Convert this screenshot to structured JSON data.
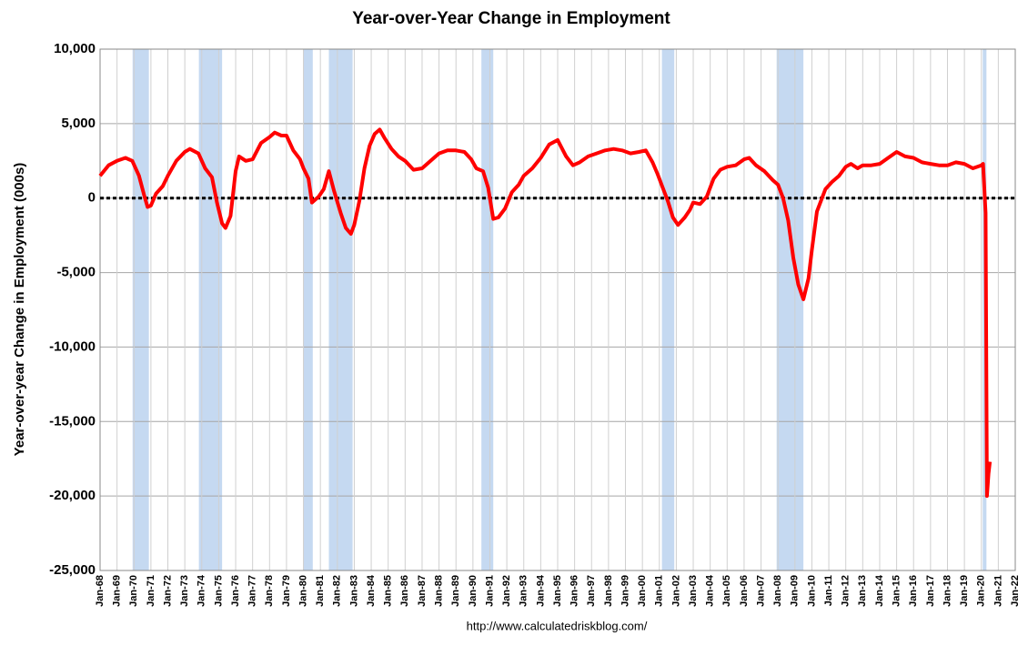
{
  "chart_data": {
    "type": "line",
    "title": "Year-over-Year Change in Employment",
    "y_label": "Year-over-year Change in Employment (000s)",
    "source": "http://www.calculatedriskblog.com/",
    "grid": true,
    "ylim": [
      -25000,
      10000
    ],
    "yticks": [
      {
        "value": -25000,
        "label": "-25,000"
      },
      {
        "value": -20000,
        "label": "-20,000"
      },
      {
        "value": -15000,
        "label": "-15,000"
      },
      {
        "value": -10000,
        "label": "-10,000"
      },
      {
        "value": -5000,
        "label": "-5,000"
      },
      0,
      {
        "value": 5000,
        "label": "5,000"
      },
      {
        "value": 10000,
        "label": "10,000"
      }
    ],
    "xlim": [
      1968,
      2022
    ],
    "xticks": [
      {
        "value": 1968,
        "label": "Jan-68"
      },
      {
        "value": 1969,
        "label": "Jan-69"
      },
      {
        "value": 1970,
        "label": "Jan-70"
      },
      {
        "value": 1971,
        "label": "Jan-71"
      },
      {
        "value": 1972,
        "label": "Jan-72"
      },
      {
        "value": 1973,
        "label": "Jan-73"
      },
      {
        "value": 1974,
        "label": "Jan-74"
      },
      {
        "value": 1975,
        "label": "Jan-75"
      },
      {
        "value": 1976,
        "label": "Jan-76"
      },
      {
        "value": 1977,
        "label": "Jan-77"
      },
      {
        "value": 1978,
        "label": "Jan-78"
      },
      {
        "value": 1979,
        "label": "Jan-79"
      },
      {
        "value": 1980,
        "label": "Jan-80"
      },
      {
        "value": 1981,
        "label": "Jan-81"
      },
      {
        "value": 1982,
        "label": "Jan-82"
      },
      {
        "value": 1983,
        "label": "Jan-83"
      },
      {
        "value": 1984,
        "label": "Jan-84"
      },
      {
        "value": 1985,
        "label": "Jan-85"
      },
      {
        "value": 1986,
        "label": "Jan-86"
      },
      {
        "value": 1987,
        "label": "Jan-87"
      },
      {
        "value": 1988,
        "label": "Jan-88"
      },
      {
        "value": 1989,
        "label": "Jan-89"
      },
      {
        "value": 1990,
        "label": "Jan-90"
      },
      {
        "value": 1991,
        "label": "Jan-91"
      },
      {
        "value": 1992,
        "label": "Jan-92"
      },
      {
        "value": 1993,
        "label": "Jan-93"
      },
      {
        "value": 1994,
        "label": "Jan-94"
      },
      {
        "value": 1995,
        "label": "Jan-95"
      },
      {
        "value": 1996,
        "label": "Jan-96"
      },
      {
        "value": 1997,
        "label": "Jan-97"
      },
      {
        "value": 1998,
        "label": "Jan-98"
      },
      {
        "value": 1999,
        "label": "Jan-99"
      },
      {
        "value": 2000,
        "label": "Jan-00"
      },
      {
        "value": 2001,
        "label": "Jan-01"
      },
      {
        "value": 2002,
        "label": "Jan-02"
      },
      {
        "value": 2003,
        "label": "Jan-03"
      },
      {
        "value": 2004,
        "label": "Jan-04"
      },
      {
        "value": 2005,
        "label": "Jan-05"
      },
      {
        "value": 2006,
        "label": "Jan-06"
      },
      {
        "value": 2007,
        "label": "Jan-07"
      },
      {
        "value": 2008,
        "label": "Jan-08"
      },
      {
        "value": 2009,
        "label": "Jan-09"
      },
      {
        "value": 2010,
        "label": "Jan-10"
      },
      {
        "value": 2011,
        "label": "Jan-11"
      },
      {
        "value": 2012,
        "label": "Jan-12"
      },
      {
        "value": 2013,
        "label": "Jan-13"
      },
      {
        "value": 2014,
        "label": "Jan-14"
      },
      {
        "value": 2015,
        "label": "Jan-15"
      },
      {
        "value": 2016,
        "label": "Jan-16"
      },
      {
        "value": 2017,
        "label": "Jan-17"
      },
      {
        "value": 2018,
        "label": "Jan-18"
      },
      {
        "value": 2019,
        "label": "Jan-19"
      },
      {
        "value": 2020,
        "label": "Jan-20"
      },
      {
        "value": 2021,
        "label": "Jan-21"
      },
      {
        "value": 2022,
        "label": "Jan-22"
      }
    ],
    "recessions": [
      [
        1969.92,
        1970.88
      ],
      [
        1973.83,
        1975.2
      ],
      [
        1980.0,
        1980.55
      ],
      [
        1981.5,
        1982.9
      ],
      [
        1990.5,
        1991.2
      ],
      [
        2001.15,
        2001.88
      ],
      [
        2007.92,
        2009.5
      ],
      [
        2020.08,
        2020.3
      ]
    ],
    "recession_color": "#c5d9f1",
    "x": [
      1968.0,
      1968.5,
      1969.0,
      1969.5,
      1969.9,
      1970.3,
      1970.6,
      1970.8,
      1971.0,
      1971.3,
      1971.7,
      1972.0,
      1972.5,
      1973.0,
      1973.3,
      1973.8,
      1974.2,
      1974.6,
      1974.9,
      1975.2,
      1975.4,
      1975.7,
      1976.0,
      1976.2,
      1976.6,
      1977.0,
      1977.5,
      1978.0,
      1978.3,
      1978.7,
      1979.0,
      1979.4,
      1979.8,
      1980.0,
      1980.3,
      1980.5,
      1980.9,
      1981.2,
      1981.5,
      1981.8,
      1982.2,
      1982.5,
      1982.8,
      1983.0,
      1983.3,
      1983.6,
      1983.9,
      1984.2,
      1984.5,
      1984.8,
      1985.2,
      1985.6,
      1986.0,
      1986.5,
      1987.0,
      1987.5,
      1988.0,
      1988.5,
      1989.0,
      1989.5,
      1989.9,
      1990.2,
      1990.6,
      1990.9,
      1991.2,
      1991.5,
      1991.9,
      1992.3,
      1992.7,
      1993.0,
      1993.5,
      1994.0,
      1994.5,
      1995.0,
      1995.5,
      1995.9,
      1996.3,
      1996.8,
      1997.3,
      1997.8,
      1998.3,
      1998.8,
      1999.3,
      1999.8,
      2000.2,
      2000.6,
      2000.9,
      2001.2,
      2001.5,
      2001.8,
      2002.1,
      2002.5,
      2002.8,
      2003.0,
      2003.4,
      2003.8,
      2004.2,
      2004.6,
      2005.0,
      2005.5,
      2006.0,
      2006.3,
      2006.7,
      2007.2,
      2007.7,
      2008.0,
      2008.3,
      2008.6,
      2008.9,
      2009.2,
      2009.5,
      2009.8,
      2010.0,
      2010.3,
      2010.8,
      2011.2,
      2011.6,
      2012.0,
      2012.3,
      2012.7,
      2013.0,
      2013.5,
      2014.0,
      2014.5,
      2015.0,
      2015.5,
      2016.0,
      2016.5,
      2017.0,
      2017.5,
      2018.0,
      2018.5,
      2019.0,
      2019.5,
      2020.0,
      2020.1,
      2020.25,
      2020.33,
      2020.42,
      2020.5
    ],
    "series": [
      {
        "name": "Year-over-Year Change in Employment",
        "color": "#ff0000",
        "values": [
          1500,
          2200,
          2500,
          2700,
          2500,
          1500,
          200,
          -600,
          -500,
          300,
          800,
          1500,
          2500,
          3100,
          3300,
          3000,
          2000,
          1400,
          -300,
          -1700,
          -2000,
          -1200,
          1800,
          2800,
          2500,
          2600,
          3700,
          4100,
          4400,
          4200,
          4200,
          3200,
          2600,
          2000,
          1300,
          -300,
          100,
          600,
          1800,
          500,
          -1000,
          -2000,
          -2400,
          -1800,
          -200,
          2000,
          3500,
          4300,
          4600,
          4000,
          3300,
          2800,
          2500,
          1900,
          2000,
          2500,
          3000,
          3200,
          3200,
          3100,
          2600,
          2000,
          1800,
          700,
          -1400,
          -1300,
          -700,
          400,
          900,
          1500,
          2000,
          2700,
          3600,
          3900,
          2800,
          2200,
          2400,
          2800,
          3000,
          3200,
          3300,
          3200,
          3000,
          3100,
          3200,
          2400,
          1600,
          700,
          -200,
          -1300,
          -1800,
          -1300,
          -800,
          -300,
          -400,
          100,
          1300,
          1900,
          2100,
          2200,
          2600,
          2700,
          2200,
          1800,
          1200,
          900,
          0,
          -1500,
          -4000,
          -5800,
          -6800,
          -5400,
          -3500,
          -900,
          600,
          1100,
          1500,
          2100,
          2300,
          2000,
          2200,
          2200,
          2300,
          2700,
          3100,
          2800,
          2700,
          2400,
          2300,
          2200,
          2200,
          2400,
          2300,
          2000,
          2200,
          2300,
          -1000,
          -20000,
          -18500,
          -17700
        ]
      }
    ]
  }
}
